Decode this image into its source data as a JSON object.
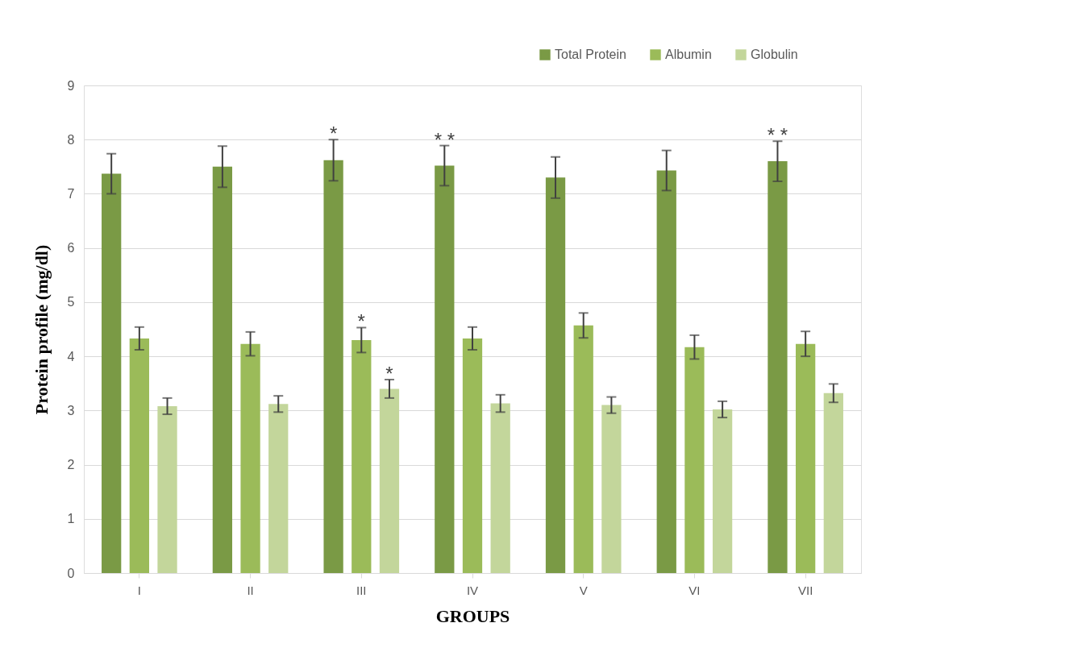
{
  "chart_data": {
    "type": "bar",
    "xlabel": "GROUPS",
    "ylabel": "Protein profile (mg/dl)",
    "categories": [
      "I",
      "II",
      "III",
      "IV",
      "V",
      "VI",
      "VII"
    ],
    "series": [
      {
        "name": "Total Protein",
        "color": "#7a9a45",
        "values": [
          7.37,
          7.5,
          7.62,
          7.52,
          7.3,
          7.43,
          7.6
        ],
        "errors": [
          0.37,
          0.38,
          0.38,
          0.37,
          0.38,
          0.37,
          0.37
        ]
      },
      {
        "name": "Albumin",
        "color": "#9bbb59",
        "values": [
          4.33,
          4.23,
          4.3,
          4.33,
          4.57,
          4.17,
          4.23
        ],
        "errors": [
          0.21,
          0.22,
          0.23,
          0.21,
          0.23,
          0.22,
          0.23
        ]
      },
      {
        "name": "Globulin",
        "color": "#c3d69b",
        "values": [
          3.08,
          3.12,
          3.4,
          3.13,
          3.1,
          3.02,
          3.32
        ],
        "errors": [
          0.15,
          0.15,
          0.17,
          0.16,
          0.15,
          0.15,
          0.17
        ]
      }
    ],
    "ylim": [
      0,
      9
    ],
    "yticks": [
      0,
      1,
      2,
      3,
      4,
      5,
      6,
      7,
      8,
      9
    ],
    "grid": "y",
    "legend": "top right",
    "annotations": [
      "*",
      "* *",
      "* *",
      "*",
      "*"
    ]
  }
}
